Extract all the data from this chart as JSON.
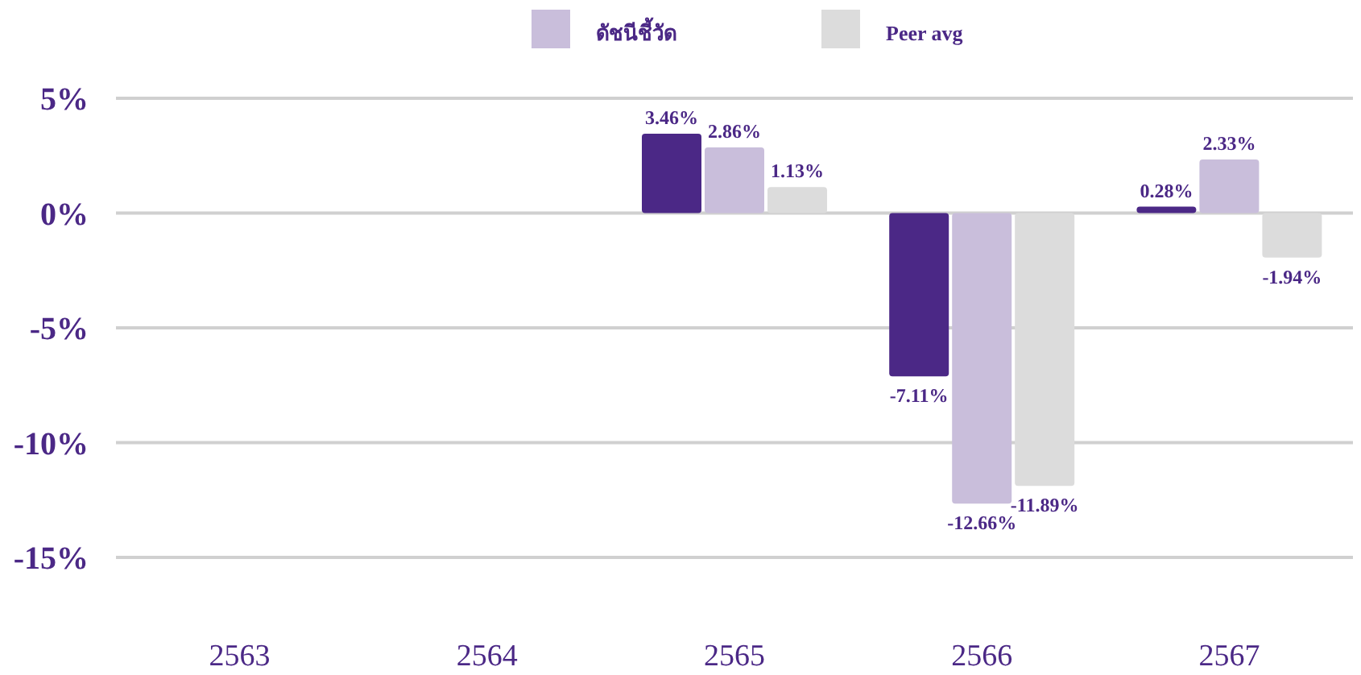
{
  "chart_data": {
    "type": "bar",
    "categories": [
      "2563",
      "2564",
      "2565",
      "2566",
      "2567"
    ],
    "series": [
      {
        "color": "#4b2886",
        "values": [
          null,
          null,
          3.46,
          -7.11,
          0.28
        ],
        "value_labels": [
          null,
          null,
          "3.46%",
          "-7.11%",
          "0.28%"
        ]
      },
      {
        "name": "ดัชนีชี้วัด",
        "color": "#c9bedb",
        "values": [
          null,
          null,
          2.86,
          -12.66,
          2.33
        ],
        "value_labels": [
          null,
          null,
          "2.86%",
          "-12.66%",
          "2.33%"
        ]
      },
      {
        "name": "Peer avg",
        "color": "#dcdcdc",
        "values": [
          null,
          null,
          1.13,
          -11.89,
          -1.94
        ],
        "value_labels": [
          null,
          null,
          "1.13%",
          "-11.89%",
          "-1.94%"
        ]
      }
    ],
    "ylim": [
      -15,
      5
    ],
    "yticks": [
      {
        "value": 5,
        "label": "5%"
      },
      {
        "value": 0,
        "label": "0%"
      },
      {
        "value": -5,
        "label": "-5%"
      },
      {
        "value": -10,
        "label": "-10%"
      },
      {
        "value": -15,
        "label": "-15%"
      }
    ],
    "grid": "y",
    "legend": "top"
  }
}
